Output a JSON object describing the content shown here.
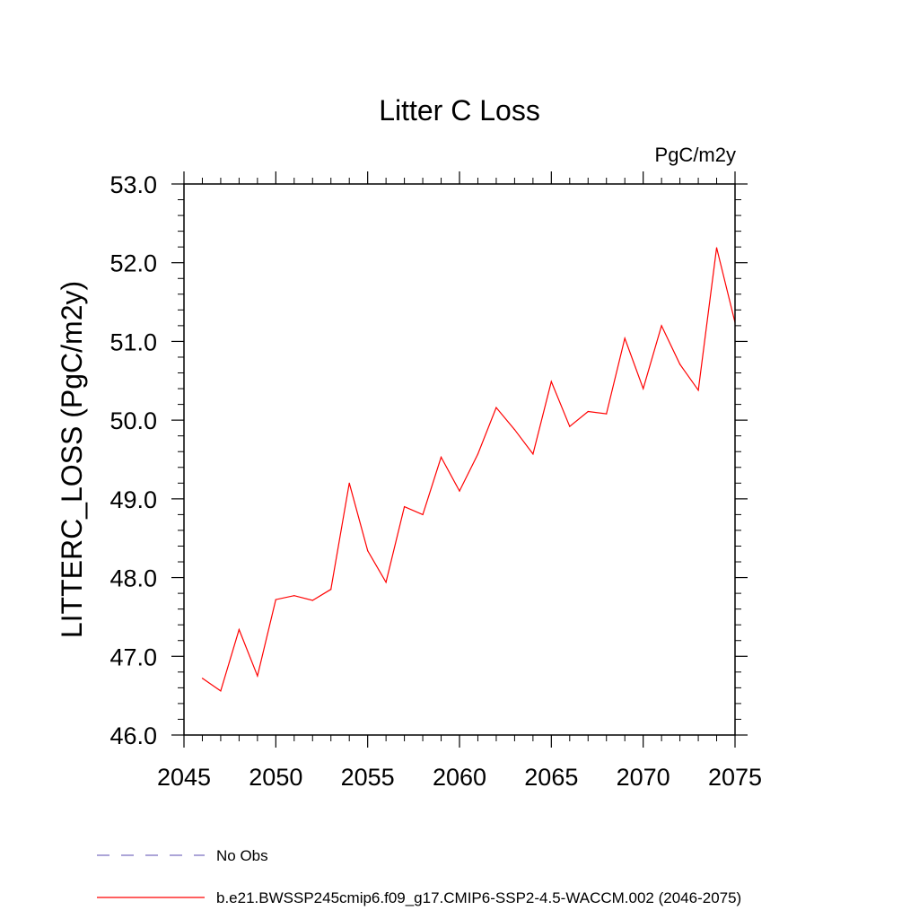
{
  "chart_data": {
    "type": "line",
    "title": "Litter C Loss",
    "units_label": "PgC/m2y",
    "ylabel": "LITTERC_LOSS  (PgC/m2y)",
    "xlabel": "",
    "xlim": [
      2045,
      2075
    ],
    "ylim": [
      46.0,
      53.0
    ],
    "x_ticks": [
      2045,
      2050,
      2055,
      2060,
      2065,
      2070,
      2075
    ],
    "y_ticks": [
      46.0,
      47.0,
      48.0,
      49.0,
      50.0,
      51.0,
      52.0,
      53.0
    ],
    "x_tick_labels": [
      "2045",
      "2050",
      "2055",
      "2060",
      "2065",
      "2070",
      "2075"
    ],
    "y_tick_labels": [
      "46.0",
      "47.0",
      "48.0",
      "49.0",
      "50.0",
      "51.0",
      "52.0",
      "53.0"
    ],
    "grid": false,
    "legend_placement": "bottom-left, below plot",
    "series": [
      {
        "name": "b.e21.BWSSP245cmip6.f09_g17.CMIP6-SSP2-4.5-WACCM.002 (2046-2075)",
        "color": "#ff0000",
        "style": "solid",
        "x": [
          2046,
          2047,
          2048,
          2049,
          2050,
          2051,
          2052,
          2053,
          2054,
          2055,
          2056,
          2057,
          2058,
          2059,
          2060,
          2061,
          2062,
          2063,
          2064,
          2065,
          2066,
          2067,
          2068,
          2069,
          2070,
          2071,
          2072,
          2073,
          2074,
          2075
        ],
        "values": [
          46.72,
          46.56,
          47.34,
          46.75,
          47.72,
          47.77,
          47.71,
          47.85,
          49.2,
          48.34,
          47.94,
          48.9,
          48.8,
          49.53,
          49.1,
          49.57,
          50.16,
          49.88,
          49.57,
          50.49,
          49.92,
          50.11,
          50.08,
          51.04,
          50.4,
          51.2,
          50.71,
          50.38,
          52.19,
          51.24
        ]
      }
    ],
    "legend": [
      {
        "label": "No Obs",
        "color": "#7a6fc0",
        "style": "dashed"
      },
      {
        "label": "b.e21.BWSSP245cmip6.f09_g17.CMIP6-SSP2-4.5-WACCM.002 (2046-2075)",
        "color": "#ff0000",
        "style": "solid"
      }
    ]
  }
}
